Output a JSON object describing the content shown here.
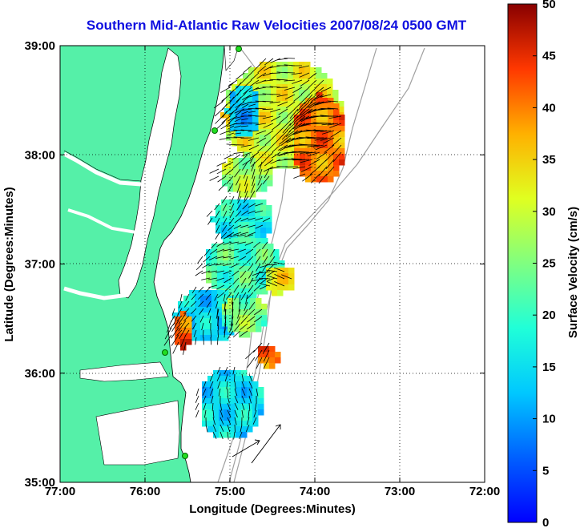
{
  "title": "Southern Mid-Atlantic Raw Velocities 2007/08/24 0500 GMT",
  "x_axis": {
    "label": "Longitude (Degrees:Minutes)",
    "ticks": [
      "77:00",
      "76:00",
      "75:00",
      "74:00",
      "73:00",
      "72:00"
    ],
    "range": [
      -77,
      -72
    ]
  },
  "y_axis": {
    "label": "Latitude (Degrees:Minutes)",
    "ticks": [
      "35:00",
      "36:00",
      "37:00",
      "38:00",
      "39:00"
    ],
    "range": [
      35,
      39
    ]
  },
  "colorbar": {
    "label": "Surface Velocity (cm/s)",
    "ticks": [
      "0",
      "5",
      "10",
      "15",
      "20",
      "25",
      "30",
      "35",
      "40",
      "45",
      "50"
    ],
    "range": [
      0,
      50
    ]
  },
  "colors": {
    "land": "#55f0a8",
    "title": "#1010e0",
    "station": "#22dd22"
  },
  "grid": "dotted"
}
